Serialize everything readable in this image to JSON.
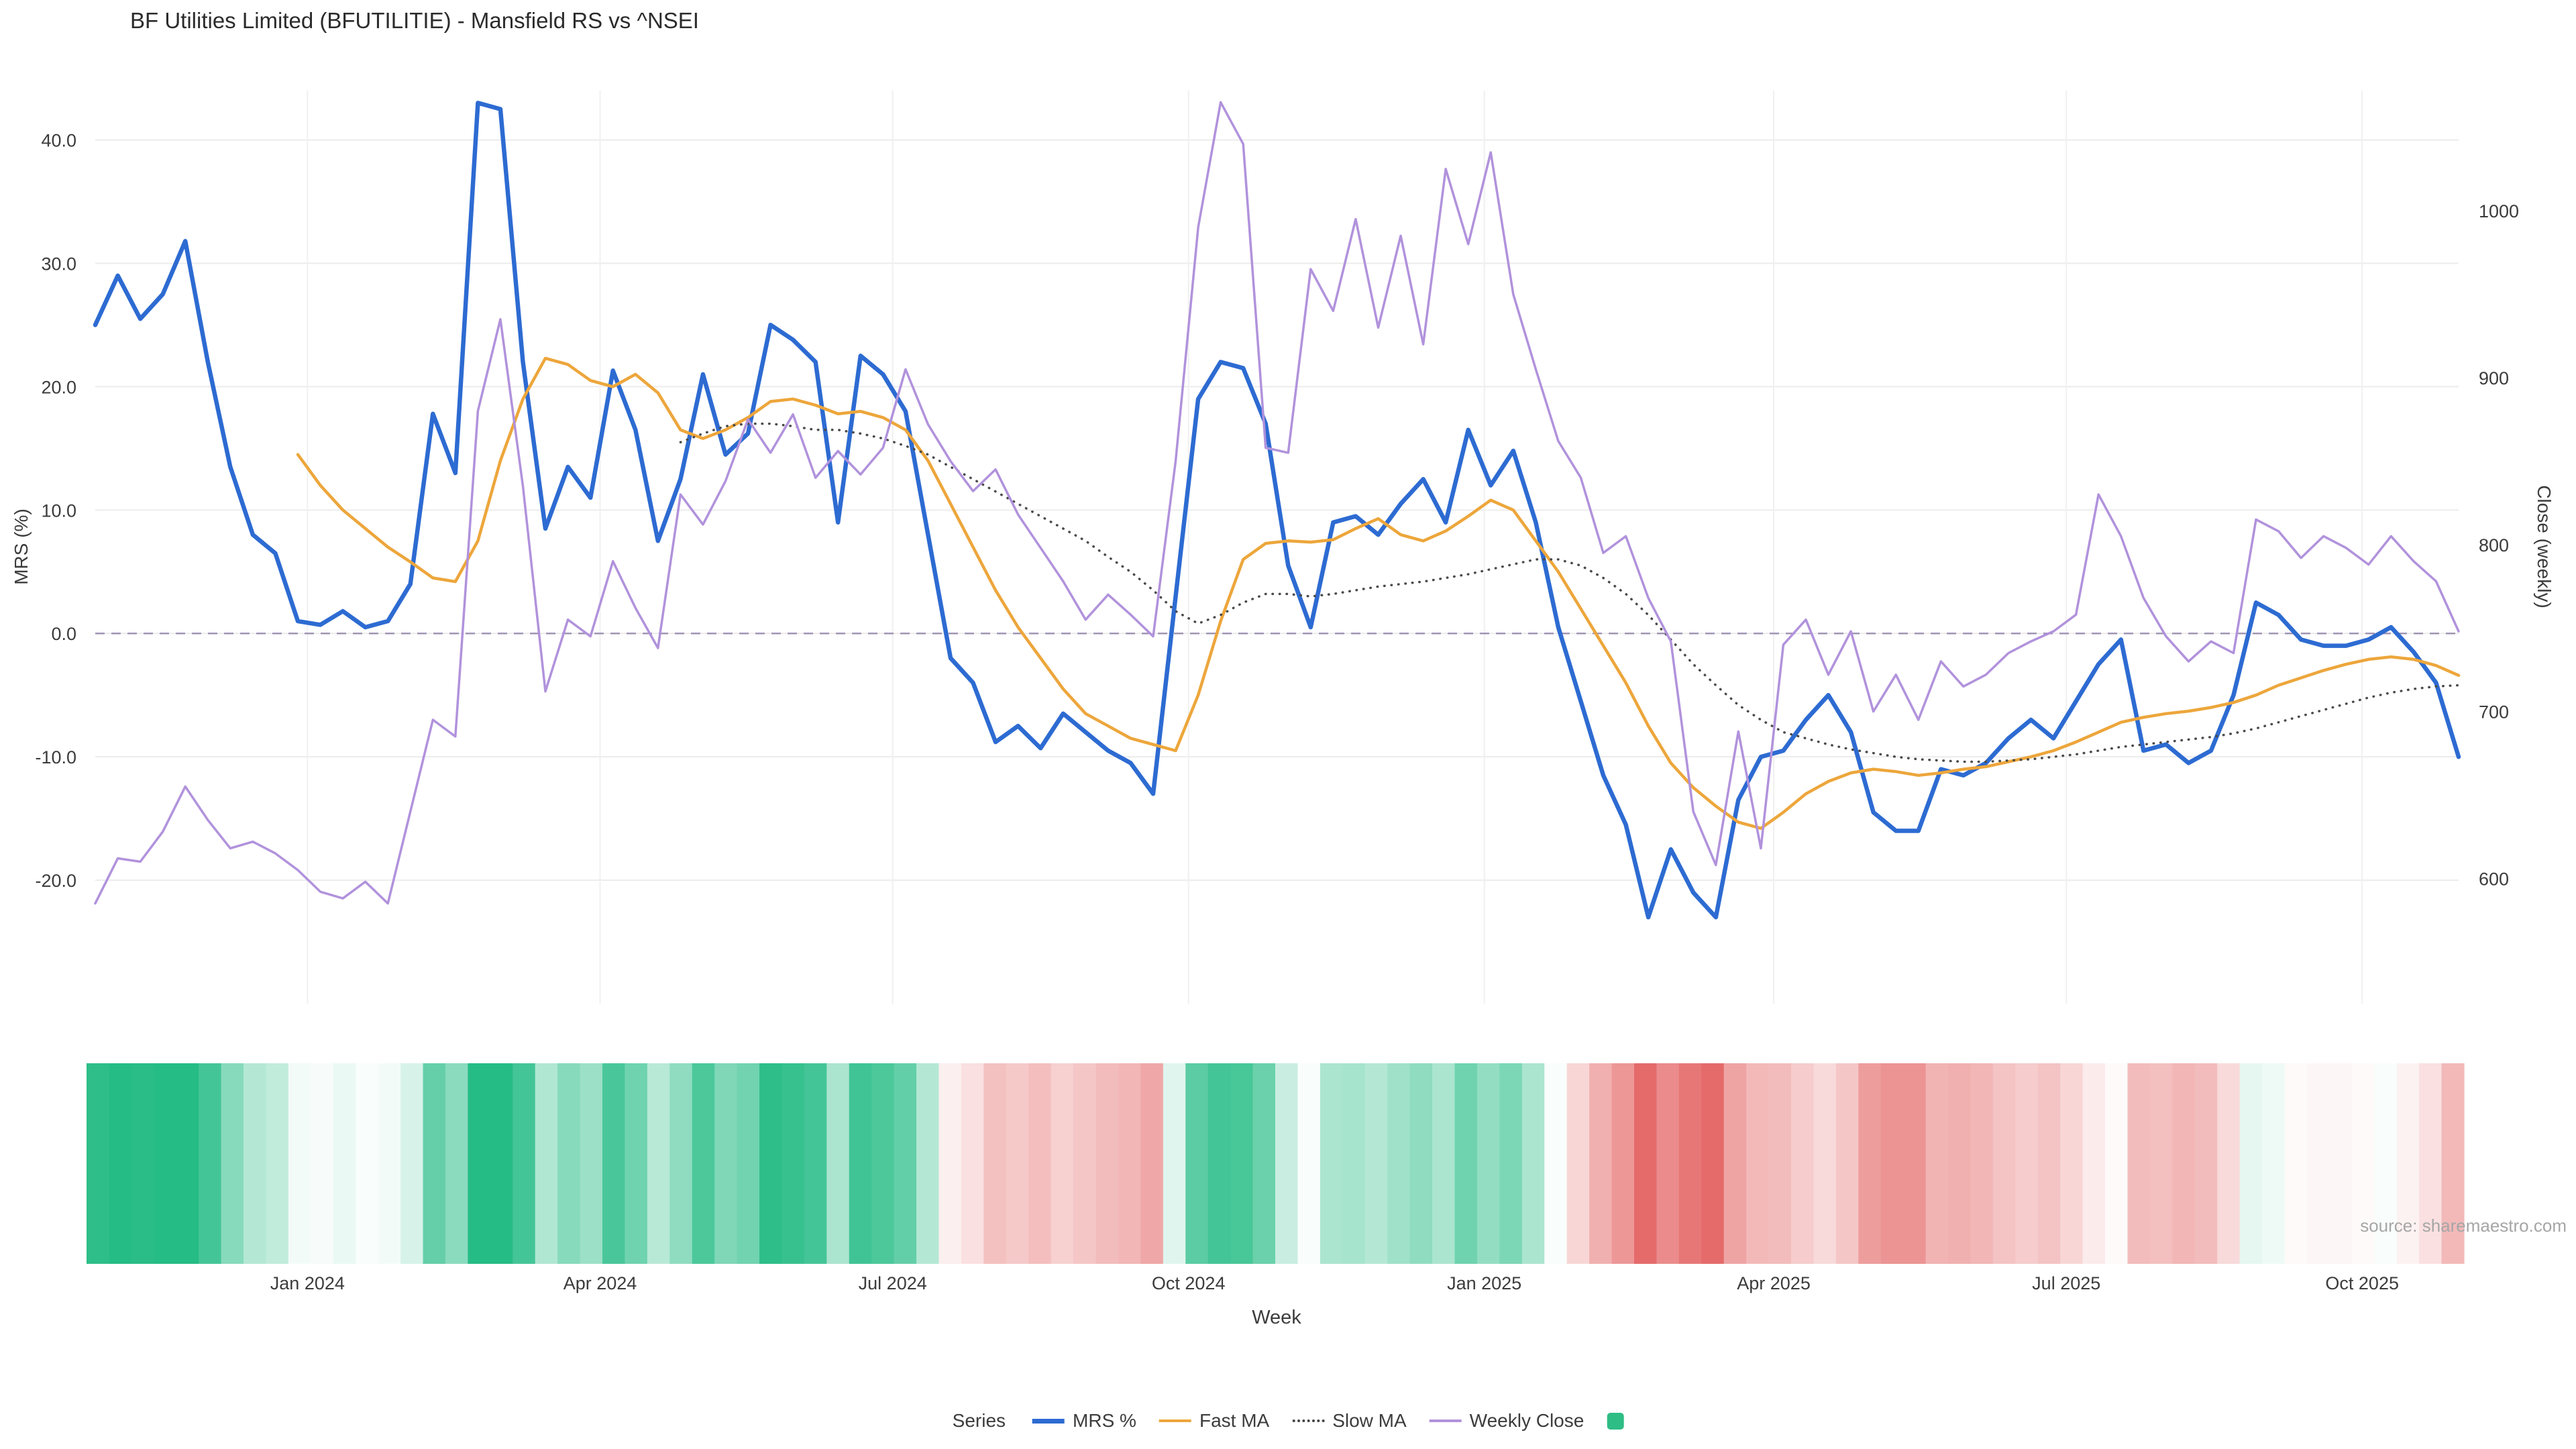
{
  "title": "BF Utilities Limited (BFUTILITIE) - Mansfield RS vs ^NSEI",
  "source_note": "source: sharemaestro.com",
  "axes": {
    "x_label": "Week",
    "y_left_label": "MRS (%)",
    "y_right_label": "Close (weekly)",
    "x_ticks": [
      {
        "label": "Jan 2024",
        "date": "2024-01-01"
      },
      {
        "label": "Apr 2024",
        "date": "2024-04-01"
      },
      {
        "label": "Jul 2024",
        "date": "2024-07-01"
      },
      {
        "label": "Oct 2024",
        "date": "2024-10-01"
      },
      {
        "label": "Jan 2025",
        "date": "2025-01-01"
      },
      {
        "label": "Apr 2025",
        "date": "2025-04-01"
      },
      {
        "label": "Jul 2025",
        "date": "2025-07-01"
      },
      {
        "label": "Oct 2025",
        "date": "2025-10-01"
      }
    ],
    "y_left_ticks": [
      {
        "v": 40,
        "label": "40.0"
      },
      {
        "v": 30,
        "label": "30.0"
      },
      {
        "v": 20,
        "label": "20.0"
      },
      {
        "v": 10,
        "label": "10.0"
      },
      {
        "v": 0,
        "label": "0.0"
      },
      {
        "v": -10,
        "label": "-10.0"
      },
      {
        "v": -20,
        "label": "-20.0"
      }
    ],
    "y_right_ticks": [
      {
        "v": 1000,
        "label": "1000"
      },
      {
        "v": 900,
        "label": "900"
      },
      {
        "v": 800,
        "label": "800"
      },
      {
        "v": 700,
        "label": "700"
      },
      {
        "v": 600,
        "label": "600"
      }
    ]
  },
  "legend": {
    "title": "Series",
    "items": [
      {
        "label": "MRS %",
        "color": "#2d6bd2",
        "swatch": "line-bold"
      },
      {
        "label": "Fast MA",
        "color": "#eda63b",
        "swatch": "line"
      },
      {
        "label": "Slow MA",
        "color": "#444444",
        "swatch": "line-dotted"
      },
      {
        "label": "Weekly Close",
        "color": "#b192dc",
        "swatch": "line"
      },
      {
        "label": "",
        "color": "#2ebd85",
        "swatch": "square"
      }
    ]
  },
  "chart_data": {
    "type": "line",
    "title": "BF Utilities Limited (BFUTILITIE) - Mansfield RS vs ^NSEI",
    "xlabel": "Week",
    "ylabel_left": "MRS (%)",
    "ylabel_right": "Close (weekly)",
    "grid": true,
    "zero_line": true,
    "legend_position": "bottom",
    "left_axis": {
      "range": [
        -30,
        44
      ]
    },
    "right_axis": {
      "range": [
        525,
        1072
      ]
    },
    "x": [
      "2023-10-27",
      "2023-11-03",
      "2023-11-10",
      "2023-11-17",
      "2023-11-24",
      "2023-12-01",
      "2023-12-08",
      "2023-12-15",
      "2023-12-22",
      "2023-12-29",
      "2024-01-05",
      "2024-01-12",
      "2024-01-19",
      "2024-01-26",
      "2024-02-02",
      "2024-02-09",
      "2024-02-16",
      "2024-02-23",
      "2024-03-01",
      "2024-03-08",
      "2024-03-15",
      "2024-03-22",
      "2024-03-29",
      "2024-04-05",
      "2024-04-12",
      "2024-04-19",
      "2024-04-26",
      "2024-05-03",
      "2024-05-10",
      "2024-05-17",
      "2024-05-24",
      "2024-05-31",
      "2024-06-07",
      "2024-06-14",
      "2024-06-21",
      "2024-06-28",
      "2024-07-05",
      "2024-07-12",
      "2024-07-19",
      "2024-07-26",
      "2024-08-02",
      "2024-08-09",
      "2024-08-16",
      "2024-08-23",
      "2024-08-30",
      "2024-09-06",
      "2024-09-13",
      "2024-09-20",
      "2024-09-27",
      "2024-10-04",
      "2024-10-11",
      "2024-10-18",
      "2024-10-25",
      "2024-11-01",
      "2024-11-08",
      "2024-11-15",
      "2024-11-22",
      "2024-11-29",
      "2024-12-06",
      "2024-12-13",
      "2024-12-20",
      "2024-12-27",
      "2025-01-03",
      "2025-01-10",
      "2025-01-17",
      "2025-01-24",
      "2025-01-31",
      "2025-02-07",
      "2025-02-14",
      "2025-02-21",
      "2025-02-28",
      "2025-03-07",
      "2025-03-14",
      "2025-03-21",
      "2025-03-28",
      "2025-04-04",
      "2025-04-11",
      "2025-04-18",
      "2025-04-25",
      "2025-05-02",
      "2025-05-09",
      "2025-05-16",
      "2025-05-23",
      "2025-05-30",
      "2025-06-06",
      "2025-06-13",
      "2025-06-20",
      "2025-06-27",
      "2025-07-04",
      "2025-07-11",
      "2025-07-18",
      "2025-07-25",
      "2025-08-01",
      "2025-08-08",
      "2025-08-15",
      "2025-08-22",
      "2025-08-29",
      "2025-09-05",
      "2025-09-12",
      "2025-09-19",
      "2025-09-26",
      "2025-10-03",
      "2025-10-10",
      "2025-10-17",
      "2025-10-24",
      "2025-10-31"
    ],
    "series": [
      {
        "id": "mrs",
        "name": "MRS %",
        "axis": "left",
        "color": "#2d6bd2",
        "width": 6.5,
        "dash": "solid",
        "values": [
          25,
          29,
          25.5,
          27.5,
          31.8,
          22,
          13.5,
          8,
          6.5,
          1,
          0.7,
          1.8,
          0.5,
          1,
          4,
          17.8,
          13,
          43,
          42.5,
          22,
          8.5,
          13.5,
          11,
          21.3,
          16.5,
          7.5,
          12.5,
          21,
          14.5,
          16.2,
          25,
          23.8,
          22,
          9,
          22.5,
          21,
          18,
          8,
          -2,
          -4,
          -8.8,
          -7.5,
          -9.3,
          -6.5,
          -8,
          -9.5,
          -10.5,
          -13,
          3,
          19,
          22,
          21.5,
          17,
          5.5,
          0.5,
          9,
          9.5,
          8,
          10.5,
          12.5,
          9,
          16.5,
          12,
          14.8,
          9,
          0.5,
          -5.5,
          -11.5,
          -15.5,
          -23,
          -17.5,
          -21,
          -23,
          -13.5,
          -10,
          -9.5,
          -7,
          -5,
          -8,
          -14.5,
          -16,
          -16,
          -11,
          -11.5,
          -10.5,
          -8.5,
          -7,
          -8.5,
          -5.5,
          -2.5,
          -0.5,
          -9.5,
          -9,
          -10.5,
          -9.5,
          -5,
          2.5,
          1.5,
          -0.5,
          -1,
          -1,
          -0.5,
          0.5,
          -1.5,
          -4,
          -10
        ]
      },
      {
        "id": "fast-ma",
        "name": "Fast MA",
        "axis": "left",
        "color": "#eda63b",
        "width": 4.5,
        "dash": "solid",
        "values": [
          null,
          null,
          null,
          null,
          null,
          null,
          null,
          null,
          null,
          14.5,
          12,
          10,
          8.5,
          7,
          5.8,
          4.5,
          4.2,
          7.5,
          14,
          19,
          22.3,
          21.8,
          20.5,
          20,
          21,
          19.5,
          16.5,
          15.8,
          16.5,
          17.5,
          18.8,
          19,
          18.5,
          17.8,
          18,
          17.5,
          16.5,
          14,
          10.5,
          7,
          3.5,
          0.5,
          -2,
          -4.5,
          -6.5,
          -7.5,
          -8.5,
          -9,
          -9.5,
          -5,
          1,
          6,
          7.3,
          7.5,
          7.4,
          7.6,
          8.5,
          9.3,
          8,
          7.5,
          8.3,
          9.5,
          10.8,
          10,
          7.5,
          5,
          2,
          -1,
          -4,
          -7.5,
          -10.5,
          -12.5,
          -14,
          -15.3,
          -15.8,
          -14.5,
          -13,
          -12,
          -11.3,
          -11,
          -11.2,
          -11.5,
          -11.3,
          -11,
          -10.8,
          -10.4,
          -10,
          -9.5,
          -8.8,
          -8,
          -7.2,
          -6.8,
          -6.5,
          -6.3,
          -6,
          -5.6,
          -5,
          -4.2,
          -3.6,
          -3,
          -2.5,
          -2.1,
          -1.9,
          -2.1,
          -2.6,
          -3.4
        ]
      },
      {
        "id": "slow-ma",
        "name": "Slow MA",
        "axis": "left",
        "color": "#4a4a4a",
        "width": 3.5,
        "dash": "dot",
        "values": [
          null,
          null,
          null,
          null,
          null,
          null,
          null,
          null,
          null,
          null,
          null,
          null,
          null,
          null,
          null,
          null,
          null,
          null,
          null,
          null,
          null,
          null,
          null,
          null,
          null,
          null,
          15.5,
          16.2,
          16.8,
          17,
          17,
          16.8,
          16.5,
          16.5,
          16.2,
          15.8,
          15.2,
          14.5,
          13.5,
          12.5,
          11.5,
          10.5,
          9.5,
          8.5,
          7.5,
          6.2,
          5,
          3.5,
          1.8,
          0.8,
          1.5,
          2.5,
          3.2,
          3.2,
          3,
          3.2,
          3.5,
          3.8,
          4,
          4.2,
          4.5,
          4.8,
          5.2,
          5.6,
          6,
          6,
          5.5,
          4.5,
          3.2,
          1.5,
          -0.5,
          -2.5,
          -4.2,
          -5.8,
          -7,
          -8,
          -8.5,
          -9,
          -9.4,
          -9.7,
          -10,
          -10.2,
          -10.3,
          -10.4,
          -10.4,
          -10.3,
          -10.2,
          -10,
          -9.8,
          -9.5,
          -9.2,
          -9,
          -8.8,
          -8.6,
          -8.4,
          -8.1,
          -7.7,
          -7.2,
          -6.7,
          -6.2,
          -5.7,
          -5.2,
          -4.8,
          -4.5,
          -4.3,
          -4.2
        ]
      },
      {
        "id": "weekly-close",
        "name": "Weekly Close",
        "axis": "right",
        "color": "#b192dc",
        "width": 3.5,
        "dash": "solid",
        "values": [
          585,
          612,
          610,
          628,
          655,
          635,
          618,
          622,
          615,
          605,
          592,
          588,
          598,
          585,
          640,
          695,
          685,
          880,
          935,
          835,
          712,
          755,
          745,
          790,
          762,
          738,
          830,
          812,
          838,
          875,
          855,
          878,
          840,
          856,
          842,
          858,
          905,
          872,
          850,
          832,
          845,
          818,
          798,
          778,
          755,
          770,
          758,
          745,
          850,
          990,
          1065,
          1040,
          858,
          855,
          965,
          940,
          995,
          930,
          985,
          920,
          1025,
          980,
          1035,
          950,
          905,
          862,
          840,
          795,
          805,
          768,
          742,
          640,
          608,
          688,
          618,
          740,
          755,
          722,
          748,
          700,
          722,
          695,
          730,
          715,
          722,
          735,
          742,
          748,
          758,
          830,
          805,
          768,
          745,
          730,
          742,
          735,
          815,
          808,
          792,
          805,
          798,
          788,
          805,
          790,
          778,
          748
        ]
      }
    ],
    "heatmap": {
      "based_on": "MRS %",
      "positive_color": "#26bc86",
      "negative_color": "#e25a5a",
      "saturation_at_abs_value": 26
    }
  }
}
